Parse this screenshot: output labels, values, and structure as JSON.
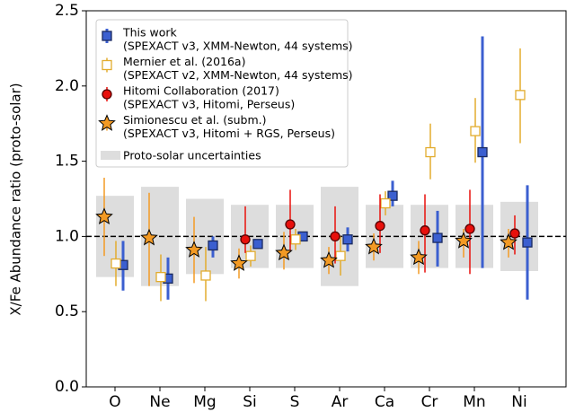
{
  "chart_data": {
    "type": "errorbar",
    "ylabel": "X/Fe Abundance ratio (proto-solar)",
    "categories": [
      "O",
      "Ne",
      "Mg",
      "Si",
      "S",
      "Ar",
      "Ca",
      "Cr",
      "Mn",
      "Ni"
    ],
    "ylim": [
      0,
      2.5
    ],
    "yticks": [
      {
        "value": 0,
        "label": "0.0"
      },
      0.5,
      {
        "value": 1,
        "label": "1.0"
      },
      1.5,
      {
        "value": 2,
        "label": "2.0"
      },
      2.5
    ],
    "reference_line": 1,
    "proto_solar": {
      "name": "Proto-solar uncertainties",
      "color": "#dddddd",
      "low": [
        0.73,
        0.67,
        0.75,
        0.79,
        0.79,
        0.67,
        0.79,
        0.79,
        0.79,
        0.77
      ],
      "high": [
        1.27,
        1.33,
        1.25,
        1.21,
        1.21,
        1.33,
        1.21,
        1.21,
        1.21,
        1.23
      ]
    },
    "series": [
      {
        "name": "This work",
        "note": "(SPEXACT v3, XMM-Newton, 44 systems)",
        "color": "#3b5fd0",
        "marker": "square",
        "values": [
          0.81,
          0.72,
          0.94,
          0.95,
          1.0,
          0.98,
          1.27,
          0.99,
          1.56,
          0.96
        ],
        "low": [
          0.64,
          0.58,
          0.86,
          0.92,
          0.99,
          0.9,
          1.2,
          0.8,
          0.79,
          0.58
        ],
        "high": [
          0.97,
          0.86,
          1.0,
          0.98,
          1.02,
          1.06,
          1.37,
          1.17,
          2.33,
          1.34
        ]
      },
      {
        "name": "Mernier et al. (2016a)",
        "note": "(SPEXACT v2, XMM-Newton, 44 systems)",
        "color": "#e2ac2e",
        "marker": "open-square",
        "values": [
          0.82,
          0.73,
          0.74,
          0.87,
          0.98,
          0.87,
          1.22,
          1.56,
          1.7,
          1.94
        ],
        "low": [
          0.67,
          0.57,
          0.57,
          0.8,
          0.91,
          0.74,
          1.14,
          1.38,
          1.49,
          1.62
        ],
        "high": [
          0.97,
          0.88,
          0.93,
          0.94,
          1.05,
          1.0,
          1.3,
          1.75,
          1.92,
          2.25
        ]
      },
      {
        "name": "Hitomi Collaboration (2017)",
        "note": "(SPEXACT v3, Hitomi, Perseus)",
        "color": "#e8100c",
        "marker": "circle",
        "values": [
          null,
          null,
          null,
          0.98,
          1.08,
          1.0,
          1.07,
          1.04,
          1.05,
          1.02
        ],
        "low": [
          null,
          null,
          null,
          0.89,
          0.9,
          0.82,
          0.89,
          0.76,
          0.75,
          0.88
        ],
        "high": [
          null,
          null,
          null,
          1.2,
          1.31,
          1.2,
          1.28,
          1.28,
          1.31,
          1.14
        ]
      },
      {
        "name": "Simionescu et al. (subm.)",
        "note": "(SPEXACT v3, Hitomi + RGS, Perseus)",
        "color": "#f39a24",
        "marker": "star",
        "values": [
          1.13,
          0.99,
          0.91,
          0.82,
          0.89,
          0.84,
          0.93,
          0.86,
          0.97,
          0.96
        ],
        "low": [
          0.87,
          0.67,
          0.69,
          0.72,
          0.78,
          0.75,
          0.84,
          0.75,
          0.86,
          0.86
        ],
        "high": [
          1.39,
          1.29,
          1.13,
          0.92,
          1.03,
          0.93,
          1.02,
          0.97,
          1.05,
          1.05
        ]
      }
    ]
  }
}
